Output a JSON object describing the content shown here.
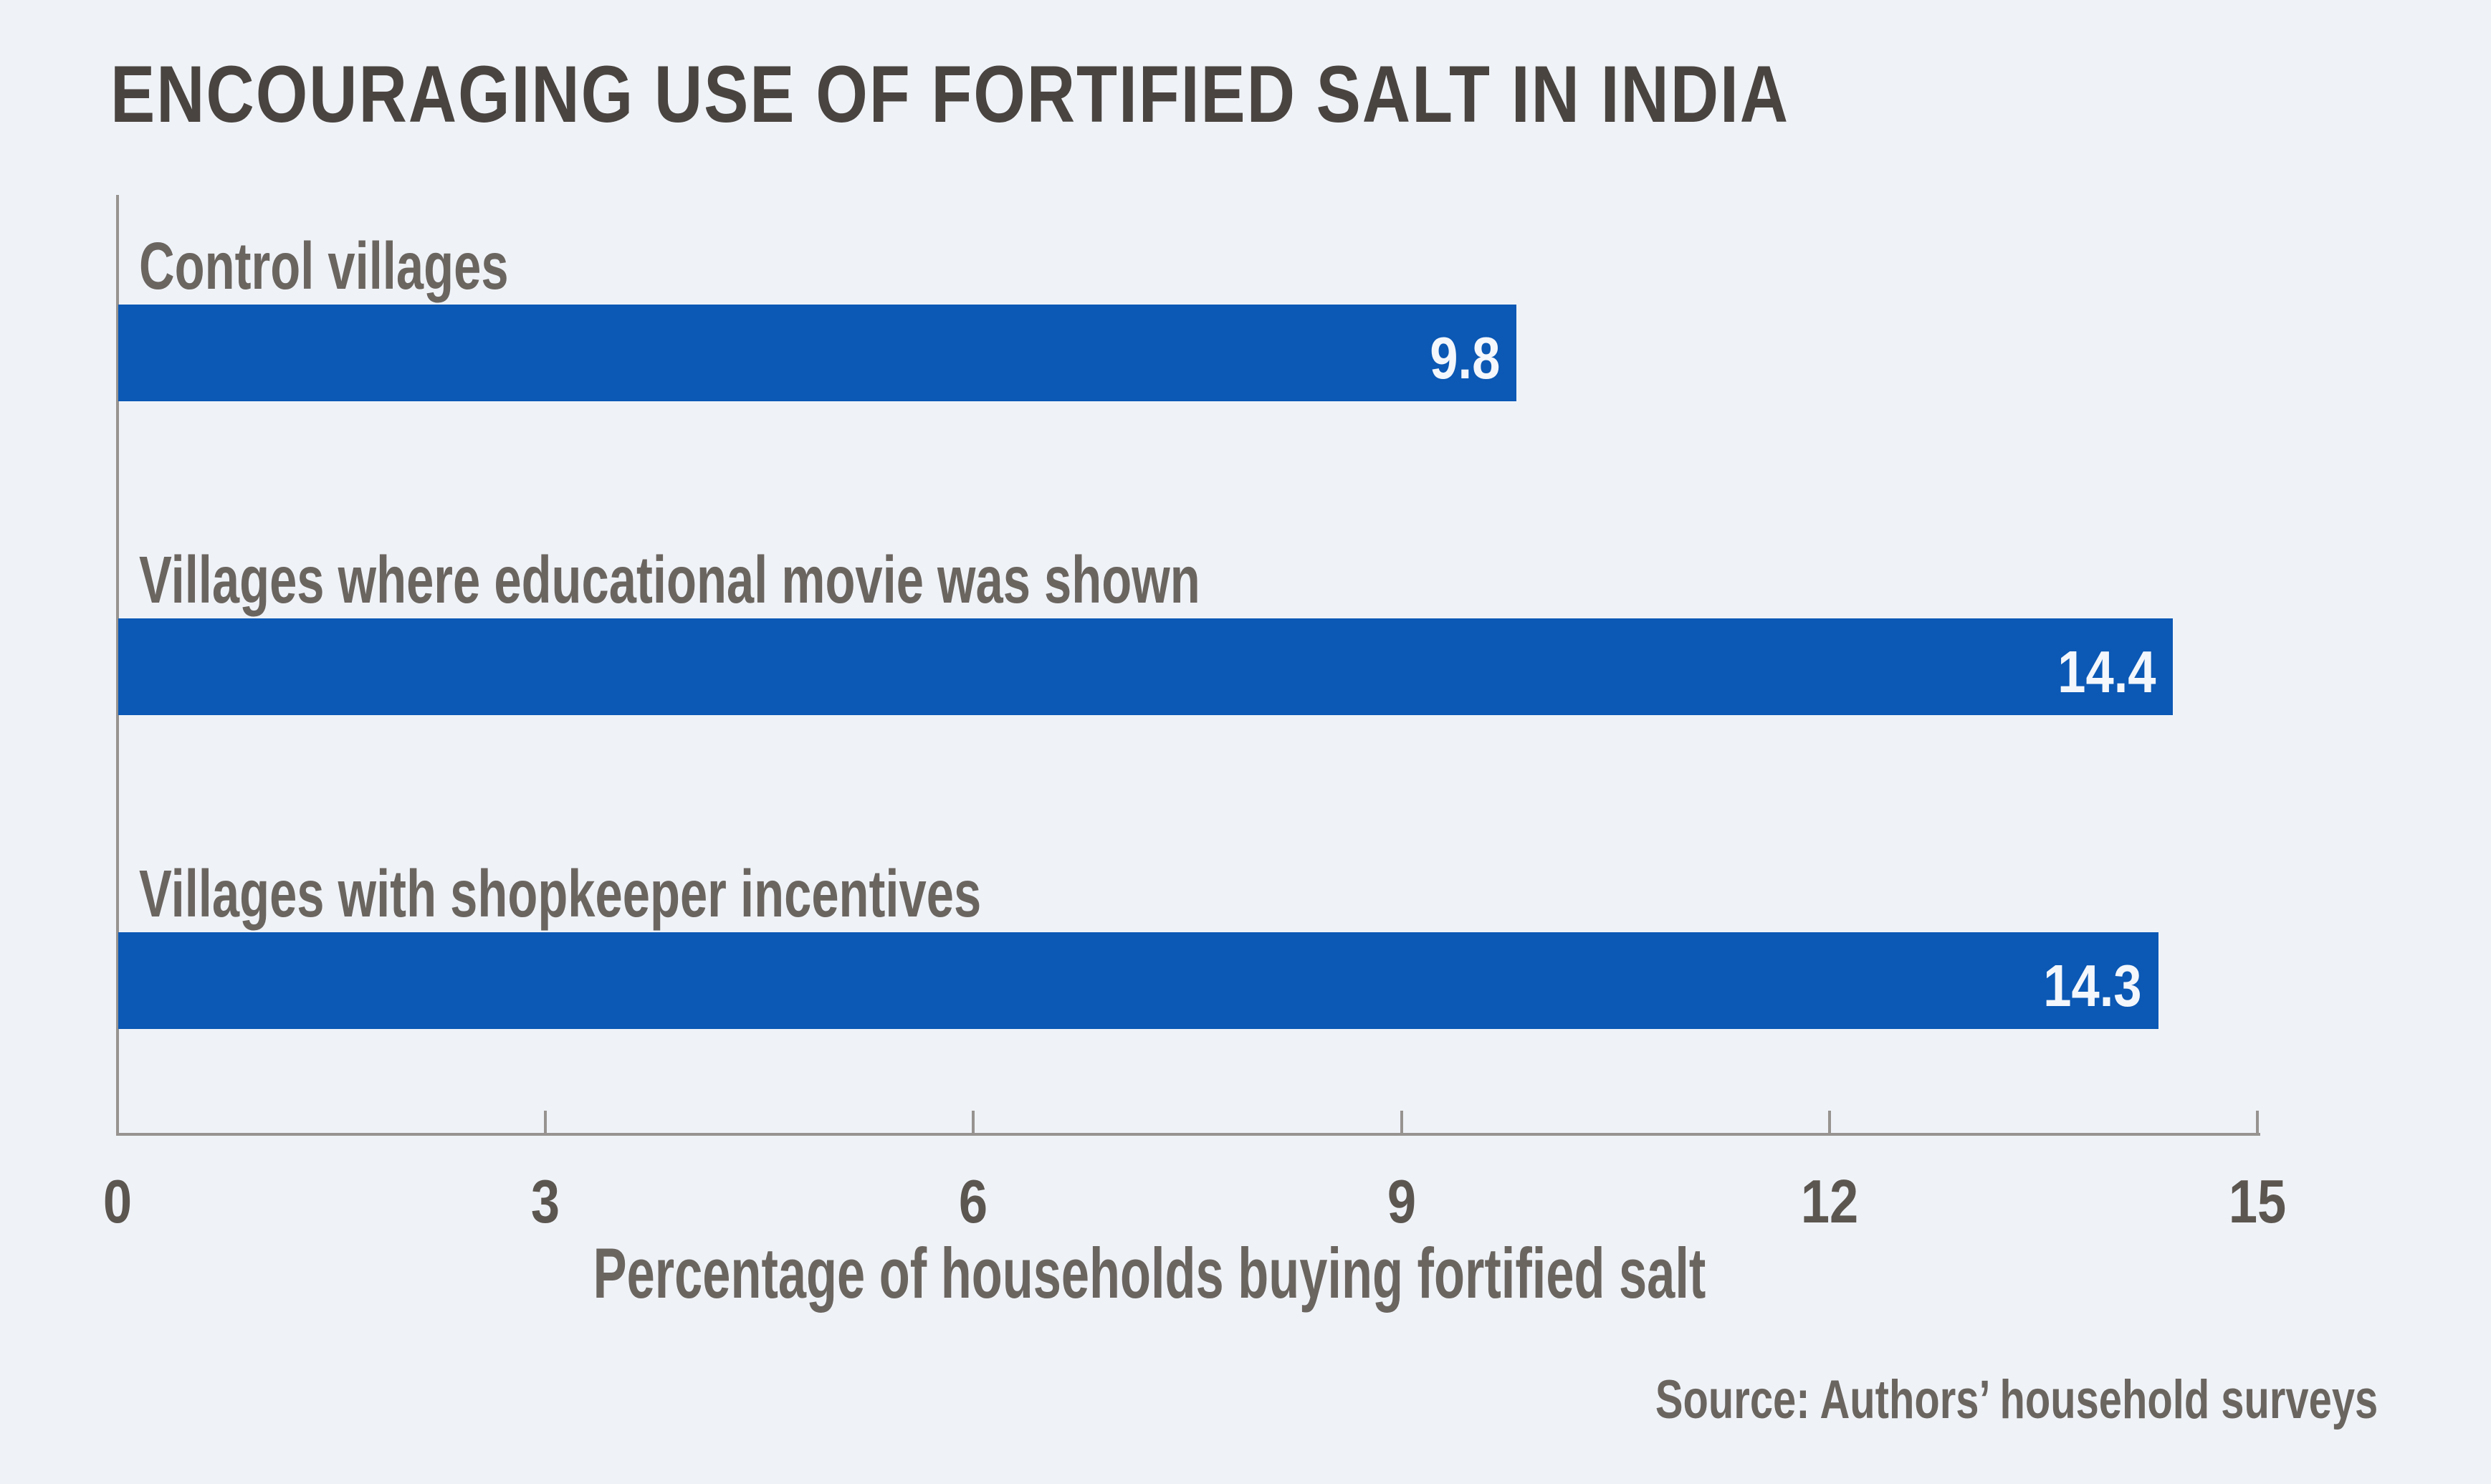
{
  "title": "ENCOURAGING USE OF FORTIFIED SALT IN INDIA",
  "source_note": "Source: Authors’ household surveys",
  "chart_data": {
    "type": "bar",
    "orientation": "horizontal",
    "title": "ENCOURAGING USE OF FORTIFIED SALT IN INDIA",
    "categories": [
      "Control villages",
      "Villages where educational movie was shown",
      "Villages with shopkeeper incentives"
    ],
    "values": [
      9.8,
      14.4,
      14.3
    ],
    "value_labels": [
      "9.8",
      "14.4",
      "14.3"
    ],
    "xlabel": "Percentage of households buying fortified salt",
    "ylabel": "",
    "xlim": [
      0,
      15
    ],
    "xticks": [
      0,
      3,
      6,
      9,
      12,
      15
    ],
    "grid": false,
    "legend": false,
    "source": "Source: Authors’ household surveys"
  },
  "colors": {
    "background": "#eff3f8",
    "bar": "#0b58b5",
    "title_text": "#4a4440",
    "label_text": "#6b6560",
    "tick_text": "#5c5650",
    "axis_line": "#979390",
    "value_text": "#f4f7fb"
  }
}
